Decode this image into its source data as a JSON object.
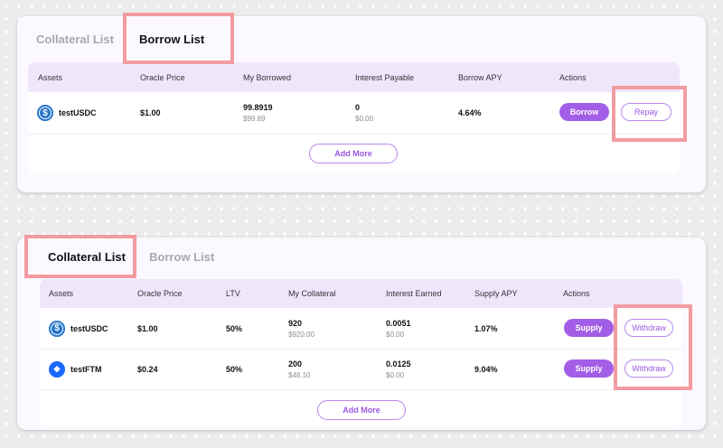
{
  "borrow_panel": {
    "tabs": {
      "collateral": "Collateral List",
      "borrow": "Borrow List"
    },
    "headers": [
      "Assets",
      "Oracle Price",
      "My Borrowed",
      "Interest Payable",
      "Borrow APY",
      "Actions"
    ],
    "rows": [
      {
        "asset": "testUSDC",
        "icon": "usdc-icon",
        "oracle_price": "$1.00",
        "borrowed": "99.8919",
        "borrowed_usd": "$99.89",
        "interest": "0",
        "interest_usd": "$0.00",
        "apy": "4.64%",
        "primary_action": "Borrow",
        "secondary_action": "Repay"
      }
    ],
    "add_more": "Add More"
  },
  "collateral_panel": {
    "tabs": {
      "collateral": "Collateral List",
      "borrow": "Borrow List"
    },
    "headers": [
      "Assets",
      "Oracle Price",
      "LTV",
      "My Collateral",
      "Interest Earned",
      "Supply APY",
      "Actions"
    ],
    "rows": [
      {
        "asset": "testUSDC",
        "icon": "usdc-icon",
        "oracle_price": "$1.00",
        "ltv": "50%",
        "collateral": "920",
        "collateral_usd": "$920.00",
        "earned": "0.0051",
        "earned_usd": "$0.00",
        "apy": "1.07%",
        "primary_action": "Supply",
        "secondary_action": "Withdraw"
      },
      {
        "asset": "testFTM",
        "icon": "ftm-icon",
        "oracle_price": "$0.24",
        "ltv": "50%",
        "collateral": "200",
        "collateral_usd": "$48.10",
        "earned": "0.0125",
        "earned_usd": "$0.00",
        "apy": "9.04%",
        "primary_action": "Supply",
        "secondary_action": "Withdraw"
      }
    ],
    "add_more": "Add More"
  },
  "colors": {
    "accent": "#a25ee6",
    "header_bg": "#efe6fc",
    "highlight": "#f29ca0"
  }
}
